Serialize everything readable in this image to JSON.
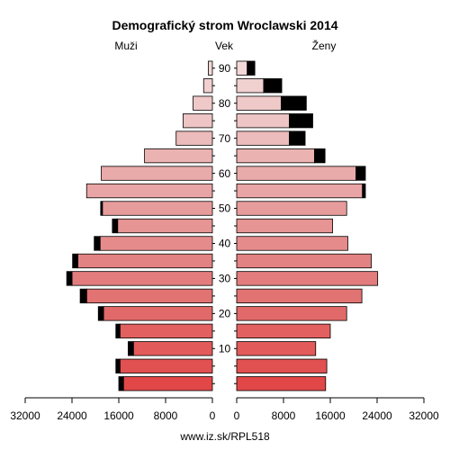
{
  "chart_data": {
    "type": "bar",
    "orientation": "horizontal",
    "layout": "population-pyramid",
    "title": "Demografický strom Wroclawski 2014",
    "left_header": "Muži",
    "center_header": "Vek",
    "right_header": "Ženy",
    "source": "www.iz.sk/RPL518",
    "age_groups": [
      "0-4",
      "5-9",
      "10-14",
      "15-19",
      "20-24",
      "25-29",
      "30-34",
      "35-39",
      "40-44",
      "45-49",
      "50-54",
      "55-59",
      "60-64",
      "65-69",
      "70-74",
      "75-79",
      "80-84",
      "85-89",
      "90+"
    ],
    "age_ticks": [
      10,
      20,
      30,
      40,
      50,
      60,
      70,
      80,
      90
    ],
    "x_ticks_left": [
      "32000",
      "24000",
      "16000",
      "8000",
      "0"
    ],
    "x_ticks_right": [
      "0",
      "8000",
      "16000",
      "24000",
      "32000"
    ],
    "x_range": [
      0,
      32000
    ],
    "series": [
      {
        "name": "Muži",
        "values": [
          15200,
          15800,
          13500,
          15800,
          18600,
          21500,
          24000,
          23000,
          19200,
          16200,
          18800,
          21500,
          19000,
          11600,
          6200,
          5000,
          3300,
          1500,
          700
        ],
        "excess": [
          800,
          700,
          900,
          700,
          900,
          1100,
          900,
          900,
          1000,
          900,
          300,
          0,
          0,
          0,
          0,
          0,
          0,
          0,
          0
        ]
      },
      {
        "name": "Ženy",
        "values": [
          15200,
          15400,
          13500,
          16000,
          18800,
          21400,
          24100,
          23000,
          19000,
          16400,
          18800,
          21500,
          20400,
          13300,
          9000,
          9000,
          7600,
          4600,
          1800
        ],
        "excess": [
          0,
          0,
          0,
          0,
          0,
          0,
          0,
          0,
          0,
          0,
          0,
          500,
          1600,
          1800,
          2700,
          4000,
          4300,
          3100,
          1300
        ]
      }
    ],
    "colors": {
      "excess": "#000000",
      "outline": "#000000",
      "axis": "#000000"
    }
  }
}
